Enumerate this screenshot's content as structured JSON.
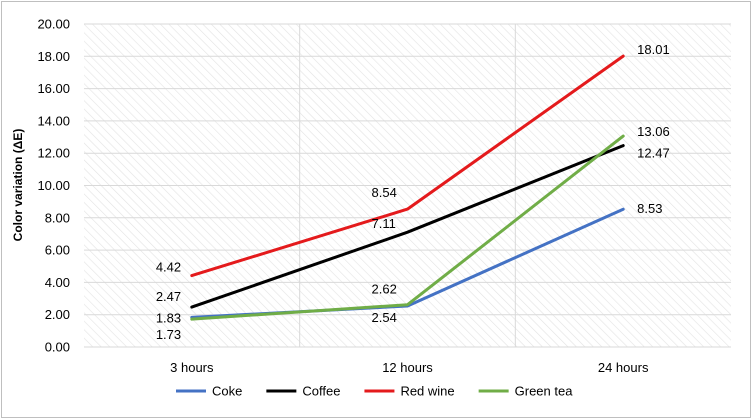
{
  "chart_data": {
    "type": "line",
    "title": "",
    "xlabel": "",
    "ylabel": "Color variation (ΔE)",
    "ylim": [
      0,
      20
    ],
    "ytick_step": 2,
    "ytick_decimals": 2,
    "grid": true,
    "legend_position": "bottom",
    "categories": [
      "3 hours",
      "12 hours",
      "24 hours"
    ],
    "series": [
      {
        "name": "Coke",
        "color": "#4472c4",
        "values": [
          1.83,
          2.54,
          8.53
        ]
      },
      {
        "name": "Coffee",
        "color": "#000000",
        "values": [
          2.47,
          7.11,
          12.47
        ]
      },
      {
        "name": "Red wine",
        "color": "#e41a1c",
        "values": [
          4.42,
          8.54,
          18.01
        ]
      },
      {
        "name": "Green tea",
        "color": "#70ad47",
        "values": [
          1.73,
          2.62,
          13.06
        ]
      }
    ]
  }
}
